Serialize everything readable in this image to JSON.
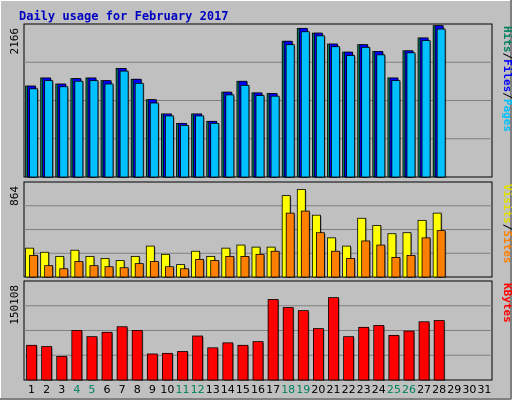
{
  "chart_data": {
    "type": "bar",
    "title": "Daily usage for February 2017",
    "days": [
      "1",
      "2",
      "3",
      "4",
      "5",
      "6",
      "7",
      "8",
      "9",
      "10",
      "11",
      "12",
      "13",
      "14",
      "15",
      "16",
      "17",
      "18",
      "19",
      "20",
      "21",
      "22",
      "23",
      "24",
      "25",
      "26",
      "27",
      "28",
      "29",
      "30",
      "31"
    ],
    "weekend_days": [
      4,
      5,
      11,
      12,
      18,
      19,
      25,
      26
    ],
    "panels": [
      {
        "name": "hits-files-pages",
        "scale_label": "2166",
        "max": 2166,
        "side_labels": [
          {
            "text": "Hits",
            "color": "#00805c"
          },
          {
            "text": "/",
            "color": "#000000"
          },
          {
            "text": "Files",
            "color": "#0000ff"
          },
          {
            "text": "/",
            "color": "#000000"
          },
          {
            "text": "Pages",
            "color": "#00c0ff"
          }
        ],
        "series": [
          {
            "name": "Hits",
            "color": "#008060",
            "values": [
              1340,
              1460,
              1370,
              1450,
              1460,
              1420,
              1600,
              1440,
              1140,
              930,
              790,
              930,
              820,
              1250,
              1410,
              1240,
              1230,
              2000,
              2190,
              2120,
              1960,
              1840,
              1950,
              1850,
              1460,
              1860,
              2050,
              2230
            ]
          },
          {
            "name": "Files",
            "color": "#0000ff",
            "values": [
              1340,
              1460,
              1370,
              1450,
              1460,
              1420,
              1600,
              1440,
              1140,
              930,
              790,
              930,
              820,
              1250,
              1410,
              1240,
              1230,
              2000,
              2190,
              2120,
              1960,
              1840,
              1950,
              1850,
              1460,
              1860,
              2050,
              2230
            ]
          },
          {
            "name": "Pages",
            "color": "#00c0ff",
            "values": [
              1300,
              1420,
              1330,
              1410,
              1420,
              1370,
              1560,
              1380,
              1090,
              900,
              760,
              900,
              790,
              1210,
              1350,
              1200,
              1190,
              1950,
              2140,
              2080,
              1920,
              1790,
              1910,
              1800,
              1420,
              1830,
              2010,
              2180
            ]
          }
        ]
      },
      {
        "name": "visits-sites",
        "scale_label": "864",
        "max": 864,
        "side_labels": [
          {
            "text": "Visits",
            "color": "#e0e000"
          },
          {
            "text": "/",
            "color": "#000000"
          },
          {
            "text": "Sites",
            "color": "#ff8000"
          }
        ],
        "series": [
          {
            "name": "Visits",
            "color": "#ffff00",
            "values": [
              280,
              240,
              200,
              260,
              200,
              180,
              160,
              200,
              300,
              220,
              120,
              250,
              200,
              280,
              310,
              290,
              290,
              790,
              850,
              600,
              380,
              300,
              570,
              500,
              420,
              430,
              550,
              620
            ]
          },
          {
            "name": "Sites",
            "color": "#ff8000",
            "values": [
              210,
              110,
              80,
              150,
              110,
              100,
              90,
              130,
              150,
              100,
              80,
              170,
              160,
              200,
              200,
              220,
              250,
              620,
              640,
              430,
              250,
              180,
              350,
              310,
              190,
              210,
              380,
              450
            ]
          }
        ]
      },
      {
        "name": "kbytes",
        "scale_label": "150108",
        "max": 150108,
        "side_labels": [
          {
            "text": "KBytes",
            "color": "#ff0000"
          }
        ],
        "series": [
          {
            "name": "KBytes",
            "color": "#ff0000",
            "values": [
              56000,
              54000,
              38000,
              80000,
              70000,
              77000,
              86000,
              80000,
              42000,
              43000,
              46000,
              71000,
              52000,
              60000,
              56000,
              62000,
              130000,
              117000,
              112000,
              83000,
              133000,
              70000,
              85000,
              88000,
              72000,
              79000,
              94000,
              96000
            ]
          }
        ]
      }
    ]
  }
}
